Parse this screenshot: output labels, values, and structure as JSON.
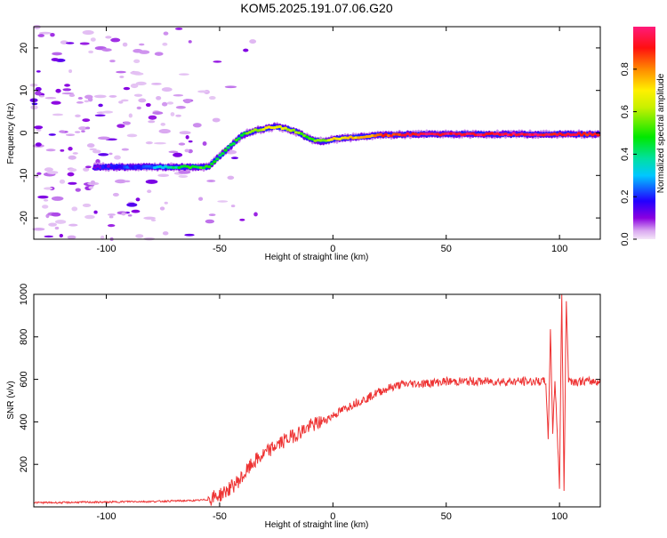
{
  "title": "KOM5.2025.191.07.06.G20",
  "colors": {
    "snr_line": "#ee3333",
    "axis": "#000000",
    "background": "#ffffff"
  },
  "chart_data": [
    {
      "type": "heatmap",
      "xlabel": "Height of straight line (km)",
      "ylabel": "Frequency (Hz)",
      "xlim": [
        -132,
        118
      ],
      "ylim": [
        -25,
        25
      ],
      "xticks": [
        "-100",
        "-50",
        "0",
        "50",
        "100"
      ],
      "yticks": [
        "-20",
        "-10",
        "0",
        "10",
        "20"
      ],
      "grid": false,
      "colorbar": {
        "label": "Normalized spectral amplitude",
        "range": [
          0.0,
          1.0
        ],
        "ticks": [
          "0.0",
          "0.2",
          "0.4",
          "0.6",
          "0.8"
        ]
      },
      "ridge": {
        "x": [
          -105,
          -95,
          -85,
          -75,
          -65,
          -55,
          -50,
          -45,
          -40,
          -35,
          -30,
          -25,
          -20,
          -15,
          -10,
          -5,
          0,
          5,
          10,
          15,
          20,
          30,
          40,
          50,
          60,
          70,
          80,
          90,
          100,
          110,
          118
        ],
        "y": [
          -8.0,
          -8.0,
          -8.0,
          -8.0,
          -8.0,
          -8.0,
          -5.5,
          -3.0,
          -0.5,
          0.5,
          1.0,
          1.5,
          1.0,
          0.0,
          -1.5,
          -2.0,
          -1.5,
          -1.2,
          -1.0,
          -0.8,
          -0.5,
          -0.4,
          -0.3,
          -0.3,
          -0.3,
          -0.3,
          -0.3,
          -0.3,
          -0.3,
          -0.3,
          -0.3
        ],
        "amplitude": [
          0.15,
          0.18,
          0.2,
          0.35,
          0.45,
          0.5,
          0.45,
          0.45,
          0.5,
          0.6,
          0.65,
          0.7,
          0.65,
          0.55,
          0.5,
          0.55,
          0.7,
          0.7,
          0.72,
          0.75,
          0.85,
          0.9,
          0.95,
          0.95,
          0.95,
          0.95,
          0.95,
          0.95,
          0.9,
          0.92,
          0.9
        ]
      }
    },
    {
      "type": "line",
      "xlabel": "Height of straight line (km)",
      "ylabel": "SNR (v/v)",
      "xlim": [
        -132,
        118
      ],
      "ylim": [
        0,
        1000
      ],
      "xticks": [
        "-100",
        "-50",
        "0",
        "50",
        "100"
      ],
      "yticks": [
        "200",
        "400",
        "600",
        "800",
        "1000"
      ],
      "grid": false,
      "series": [
        {
          "x": [
            -132,
            -120,
            -110,
            -100,
            -90,
            -80,
            -70,
            -60,
            -55,
            -50,
            -45,
            -40,
            -35,
            -30,
            -25,
            -20,
            -15,
            -10,
            -5,
            0,
            5,
            10,
            15,
            20,
            25,
            30,
            35,
            40,
            50,
            60,
            70,
            80,
            90,
            94,
            95,
            96,
            97,
            98,
            100,
            101,
            102,
            103,
            104,
            106,
            110,
            118
          ],
          "y": [
            20,
            20,
            22,
            22,
            25,
            25,
            28,
            30,
            35,
            55,
            90,
            140,
            210,
            250,
            290,
            320,
            350,
            380,
            400,
            430,
            460,
            490,
            510,
            540,
            560,
            575,
            580,
            580,
            590,
            590,
            590,
            590,
            590,
            590,
            300,
            840,
            350,
            600,
            100,
            1000,
            80,
            980,
            600,
            590,
            590,
            590
          ]
        }
      ]
    }
  ]
}
